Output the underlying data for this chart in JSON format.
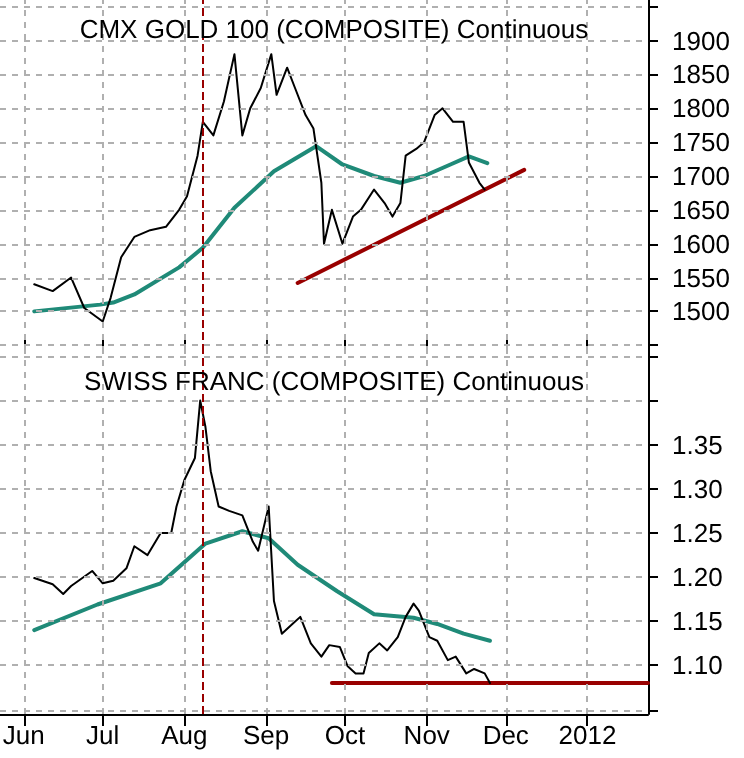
{
  "chart_data": [
    {
      "type": "line",
      "title": "CMX GOLD 100 (COMPOSITE) Continuous",
      "grid": true,
      "tick_labels": "y",
      "xlim": [
        "2011-05-23",
        "2012-01-24"
      ],
      "xticks": [
        {
          "value": "2011-06-01",
          "label": null
        },
        {
          "value": "2011-07-01",
          "label": null
        },
        {
          "value": "2011-08-01",
          "label": null
        },
        {
          "value": "2011-09-01",
          "label": null
        },
        {
          "value": "2011-10-01",
          "label": null
        },
        {
          "value": "2011-11-01",
          "label": null
        },
        {
          "value": "2011-12-01",
          "label": null
        },
        {
          "value": "2012-01-01",
          "label": null
        }
      ],
      "ylim": [
        1440,
        1960
      ],
      "yticks": [
        {
          "value": 1450,
          "label": null
        },
        1500,
        1550,
        1600,
        1650,
        1700,
        1750,
        1800,
        1850,
        1900,
        {
          "value": 1950,
          "label": null
        }
      ],
      "ref_lines": [
        {
          "axis": "x",
          "value": "2011-08-08",
          "color": "#990000",
          "line_style": "dashed"
        }
      ],
      "series": [
        {
          "color": "#000000",
          "x": [
            "2011-06-05",
            "2011-06-12",
            "2011-06-19",
            "2011-06-24",
            "2011-07-01",
            "2011-07-04",
            "2011-07-08",
            "2011-07-13",
            "2011-07-19",
            "2011-07-25",
            "2011-07-30",
            "2011-08-02",
            "2011-08-06",
            "2011-08-08",
            "2011-08-12",
            "2011-08-16",
            "2011-08-20",
            "2011-08-23",
            "2011-08-26",
            "2011-08-30",
            "2011-09-03",
            "2011-09-05",
            "2011-09-09",
            "2011-09-12",
            "2011-09-16",
            "2011-09-19",
            "2011-09-22",
            "2011-09-23",
            "2011-09-26",
            "2011-09-30",
            "2011-10-04",
            "2011-10-07",
            "2011-10-12",
            "2011-10-16",
            "2011-10-19",
            "2011-10-22",
            "2011-10-24",
            "2011-10-28",
            "2011-10-31",
            "2011-11-04",
            "2011-11-07",
            "2011-11-11",
            "2011-11-15",
            "2011-11-17",
            "2011-11-21",
            "2011-11-23"
          ],
          "values": [
            1540,
            1530,
            1550,
            1505,
            1485,
            1520,
            1580,
            1610,
            1620,
            1625,
            1650,
            1670,
            1730,
            1780,
            1760,
            1810,
            1880,
            1760,
            1800,
            1830,
            1880,
            1820,
            1860,
            1830,
            1790,
            1770,
            1690,
            1600,
            1650,
            1600,
            1640,
            1650,
            1680,
            1660,
            1640,
            1660,
            1730,
            1740,
            1750,
            1790,
            1800,
            1780,
            1780,
            1720,
            1690,
            1680
          ]
        },
        {
          "color": "#1f8a78",
          "x": [
            "2011-06-05",
            "2011-06-30",
            "2011-07-05",
            "2011-07-13",
            "2011-07-30",
            "2011-08-08",
            "2011-08-20",
            "2011-09-04",
            "2011-09-20",
            "2011-09-30",
            "2011-10-12",
            "2011-10-22",
            "2011-10-31",
            "2011-11-10",
            "2011-11-17",
            "2011-11-24"
          ],
          "values": [
            1500,
            1510,
            1513,
            1525,
            1565,
            1594,
            1653,
            1707,
            1744,
            1717,
            1700,
            1690,
            1700,
            1717,
            1729,
            1719
          ]
        },
        {
          "color": "#990000",
          "x": [
            "2011-09-13",
            "2011-12-08"
          ],
          "values": [
            1542,
            1709
          ]
        }
      ]
    },
    {
      "type": "line",
      "title": "SWISS FRANC (COMPOSITE) Continuous",
      "grid": true,
      "xlim": [
        "2011-05-23",
        "2012-01-24"
      ],
      "xticks": [
        {
          "value": "2011-06-01",
          "label": "Jun"
        },
        {
          "value": "2011-07-01",
          "label": "Jul"
        },
        {
          "value": "2011-08-01",
          "label": "Aug"
        },
        {
          "value": "2011-09-01",
          "label": "Sep"
        },
        {
          "value": "2011-10-01",
          "label": "Oct"
        },
        {
          "value": "2011-11-01",
          "label": "Nov"
        },
        {
          "value": "2011-12-01",
          "label": "Dec"
        },
        {
          "value": "2012-01-01",
          "label": "2012"
        }
      ],
      "ylim": [
        1.045,
        1.455
      ],
      "yticks": [
        {
          "value": 1.05,
          "label": null
        },
        {
          "value": 1.1,
          "label": "1.10"
        },
        1.15,
        {
          "value": 1.2,
          "label": "1.20"
        },
        1.25,
        {
          "value": 1.3,
          "label": "1.30"
        },
        1.35,
        {
          "value": 1.4,
          "label": null
        },
        {
          "value": 1.45,
          "label": null
        }
      ],
      "ref_lines": [
        {
          "axis": "x",
          "value": "2011-08-08",
          "color": "#990000",
          "line_style": "dashed"
        }
      ],
      "series": [
        {
          "color": "#000000",
          "x": [
            "2011-06-05",
            "2011-06-12",
            "2011-06-16",
            "2011-06-19",
            "2011-06-27",
            "2011-07-01",
            "2011-07-05",
            "2011-07-10",
            "2011-07-13",
            "2011-07-18",
            "2011-07-23",
            "2011-07-27",
            "2011-07-29",
            "2011-08-01",
            "2011-08-05",
            "2011-08-07",
            "2011-08-09",
            "2011-08-11",
            "2011-08-14",
            "2011-08-18",
            "2011-08-23",
            "2011-08-27",
            "2011-08-29",
            "2011-09-02",
            "2011-09-04",
            "2011-09-07",
            "2011-09-11",
            "2011-09-14",
            "2011-09-18",
            "2011-09-22",
            "2011-09-25",
            "2011-09-29",
            "2011-10-02",
            "2011-10-05",
            "2011-10-08",
            "2011-10-10",
            "2011-10-14",
            "2011-10-17",
            "2011-10-21",
            "2011-10-24",
            "2011-10-27",
            "2011-10-29",
            "2011-11-02",
            "2011-11-05",
            "2011-11-09",
            "2011-11-12",
            "2011-11-16",
            "2011-11-19",
            "2011-11-23",
            "2011-11-25"
          ],
          "values": [
            1.199,
            1.192,
            1.181,
            1.19,
            1.207,
            1.193,
            1.196,
            1.21,
            1.235,
            1.225,
            1.25,
            1.25,
            1.28,
            1.31,
            1.335,
            1.4,
            1.37,
            1.32,
            1.28,
            1.275,
            1.27,
            1.24,
            1.23,
            1.28,
            1.173,
            1.136,
            1.147,
            1.155,
            1.125,
            1.11,
            1.123,
            1.121,
            1.099,
            1.091,
            1.091,
            1.114,
            1.125,
            1.117,
            1.132,
            1.155,
            1.17,
            1.162,
            1.132,
            1.128,
            1.106,
            1.11,
            1.091,
            1.096,
            1.091,
            1.08
          ]
        },
        {
          "color": "#1f8a78",
          "x": [
            "2011-06-05",
            "2011-06-29",
            "2011-07-23",
            "2011-08-09",
            "2011-08-23",
            "2011-09-02",
            "2011-09-13",
            "2011-09-28",
            "2011-10-12",
            "2011-10-27",
            "2011-11-05",
            "2011-11-15",
            "2011-11-25"
          ],
          "values": [
            1.14,
            1.169,
            1.193,
            1.238,
            1.252,
            1.244,
            1.214,
            1.184,
            1.158,
            1.154,
            1.147,
            1.136,
            1.128
          ]
        },
        {
          "color": "#990000",
          "x": [
            "2011-09-26",
            "2012-01-24"
          ],
          "values": [
            1.08,
            1.08
          ]
        }
      ]
    }
  ]
}
